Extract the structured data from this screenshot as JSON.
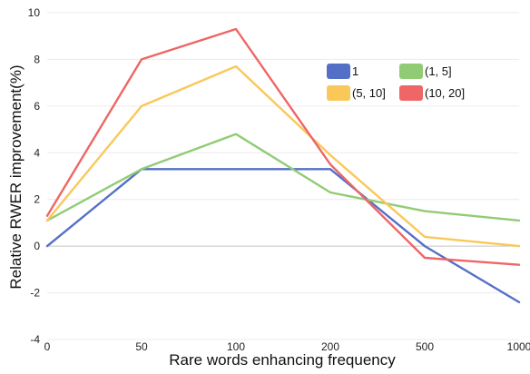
{
  "chart_data": {
    "type": "line",
    "categories": [
      "0",
      "50",
      "100",
      "200",
      "500",
      "1000"
    ],
    "xlabel": "Rare words enhancing frequency",
    "ylabel": "Relative RWER improvement(%)",
    "ylim": [
      -4,
      10
    ],
    "yticks": [
      -4,
      -2,
      0,
      2,
      4,
      6,
      8,
      10
    ],
    "grid": "horizontal",
    "legend_position": "top-right",
    "series": [
      {
        "name": "1",
        "color": "#5470c6",
        "values": [
          0.0,
          3.3,
          3.3,
          3.3,
          0.0,
          -2.4
        ]
      },
      {
        "name": "(1, 5]",
        "color": "#91cc75",
        "values": [
          1.1,
          3.3,
          4.8,
          2.3,
          1.5,
          1.1
        ]
      },
      {
        "name": "(5, 10]",
        "color": "#fac858",
        "values": [
          1.1,
          6.0,
          7.7,
          3.9,
          0.4,
          0.0
        ]
      },
      {
        "name": "(10, 20]",
        "color": "#ee6666",
        "values": [
          1.3,
          8.0,
          9.3,
          3.5,
          -0.5,
          -0.8
        ]
      }
    ]
  }
}
